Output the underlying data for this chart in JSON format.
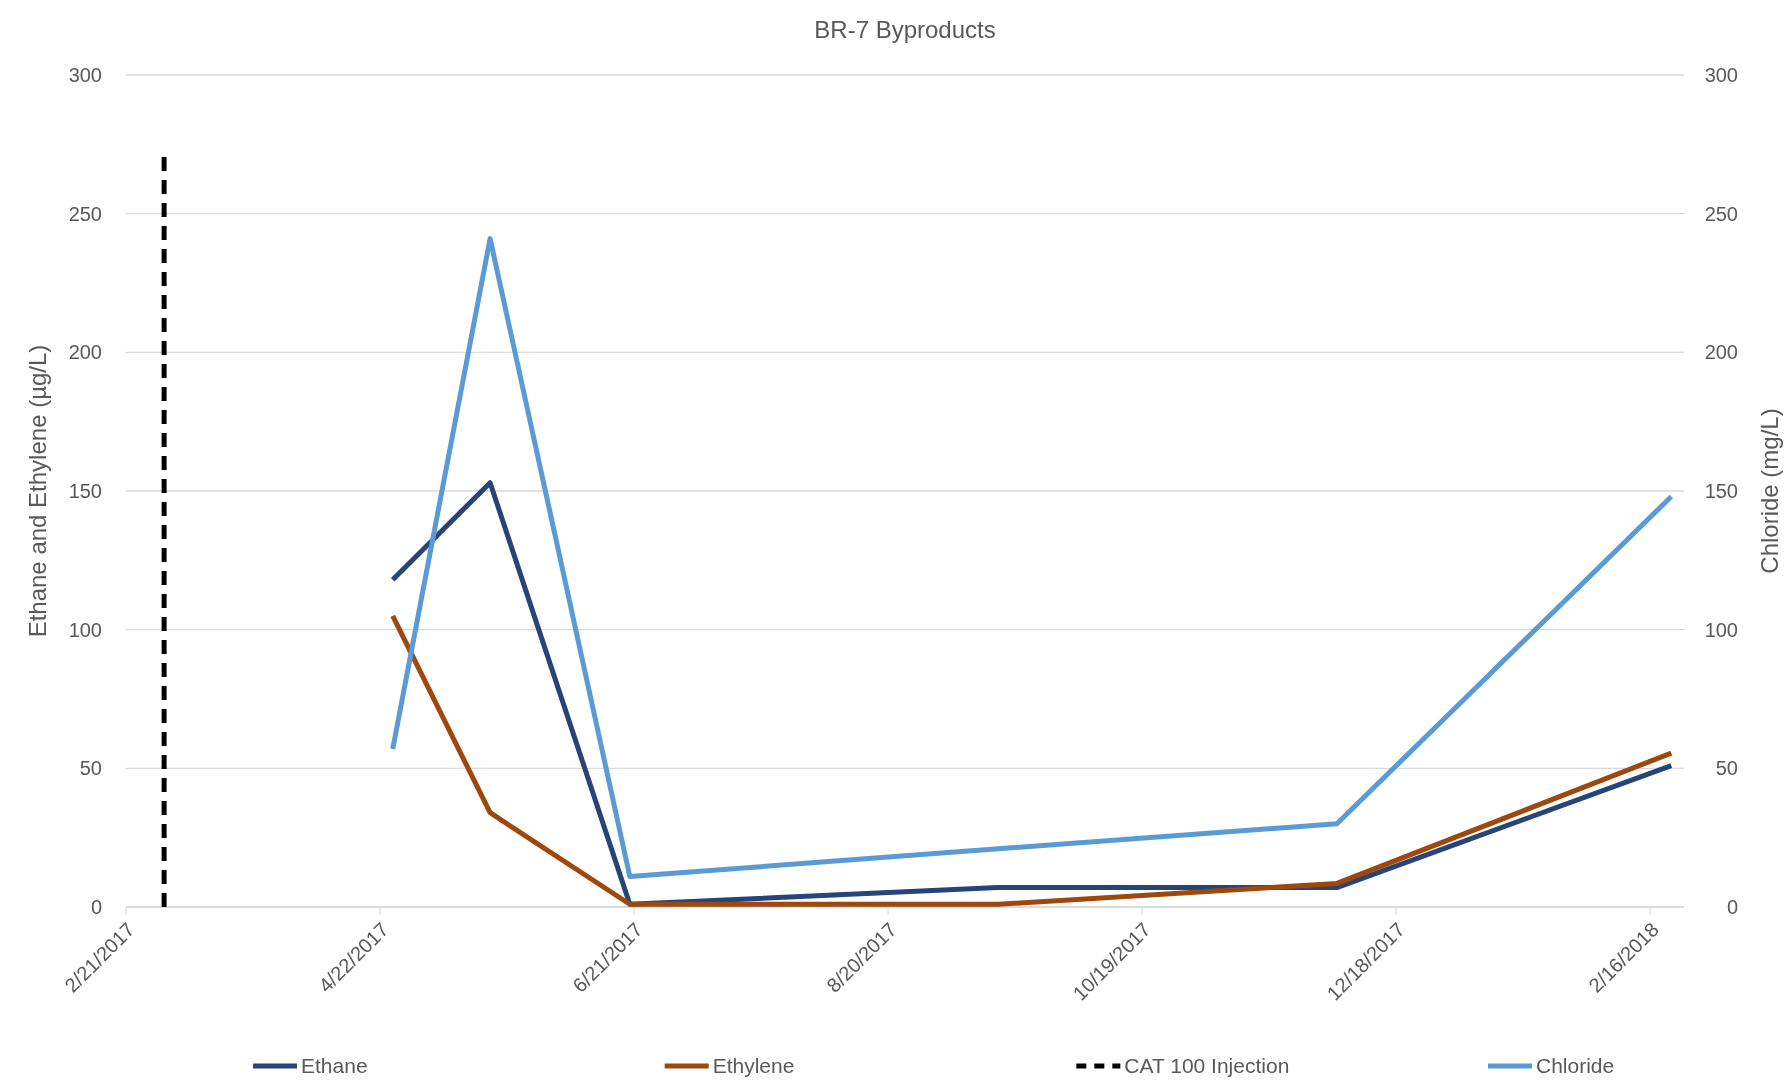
{
  "chart_data": {
    "type": "line",
    "title": "BR-7 Byproducts",
    "ylabel": "Ethane and Ethylene (µg/L)",
    "y2label": "Chloride (mg/L)",
    "xlim": [
      "2017-02-21",
      "2018-02-24"
    ],
    "xticks": [
      {
        "value": "2017-02-21",
        "label": "2/21/2017"
      },
      {
        "value": "2017-04-22",
        "label": "4/22/2017"
      },
      {
        "value": "2017-06-21",
        "label": "6/21/2017"
      },
      {
        "value": "2017-08-20",
        "label": "8/20/2017"
      },
      {
        "value": "2017-10-19",
        "label": "10/19/2017"
      },
      {
        "value": "2017-12-18",
        "label": "12/18/2017"
      },
      {
        "value": "2018-02-16",
        "label": "2/16/2018"
      }
    ],
    "ylim": [
      0,
      300
    ],
    "yticks": [
      0,
      50,
      100,
      150,
      200,
      250,
      300
    ],
    "y2lim": [
      0,
      300
    ],
    "y2ticks": [
      0,
      50,
      100,
      150,
      200,
      250,
      300
    ],
    "grid": "y",
    "legend": "bottom",
    "marker": "none",
    "series": [
      {
        "name": "Ethane",
        "color": "#264478",
        "x": [
          "2017-04-25",
          "2017-05-18",
          "2017-06-20",
          "2017-09-15",
          "2017-12-04",
          "2018-02-21"
        ],
        "values": [
          118,
          153,
          1,
          7,
          7,
          51
        ]
      },
      {
        "name": "Ethylene",
        "color": "#9e480e",
        "x": [
          "2017-04-25",
          "2017-05-18",
          "2017-06-20",
          "2017-09-15",
          "2017-12-04",
          "2018-02-21"
        ],
        "values": [
          105,
          34,
          1,
          1,
          8.5,
          55.5
        ]
      },
      {
        "name": "CAT 100 Injection",
        "color": "#000000",
        "line_style": "dashed",
        "x": [
          "2017-03-02",
          "2017-03-02"
        ],
        "values": [
          0,
          272
        ]
      },
      {
        "name": "Chloride",
        "color": "#5b9bd5",
        "axis": "y2",
        "x": [
          "2017-04-25",
          "2017-05-18",
          "2017-06-20",
          "2017-09-15",
          "2017-12-04",
          "2018-02-21"
        ],
        "values": [
          57,
          241,
          11,
          21,
          30,
          148
        ]
      }
    ]
  }
}
